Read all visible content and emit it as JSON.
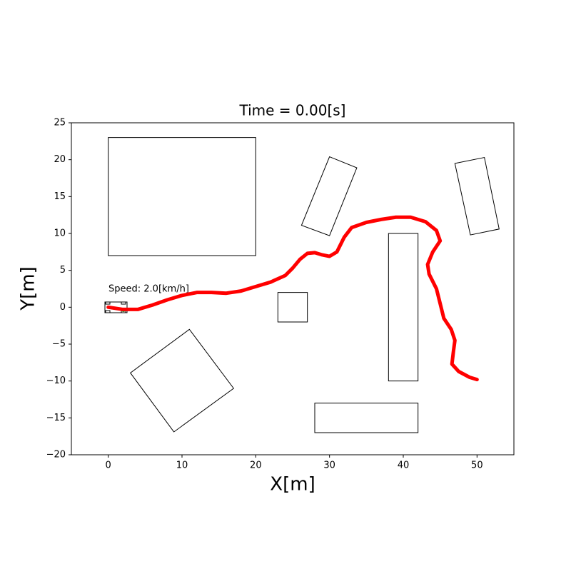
{
  "chart_data": {
    "type": "line",
    "title": "Time = 0.00[s]",
    "xlabel": "X[m]",
    "ylabel": "Y[m]",
    "annotation": "Speed: 2.0[km/h]",
    "xlim": [
      -5,
      55
    ],
    "ylim": [
      -20,
      25
    ],
    "xticks": [
      0,
      10,
      20,
      30,
      40,
      50
    ],
    "yticks": [
      {
        "value": -20,
        "label": "−20"
      },
      {
        "value": -15,
        "label": "−15"
      },
      {
        "value": -10,
        "label": "−10"
      },
      {
        "value": -5,
        "label": "−5"
      },
      0,
      5,
      10,
      15,
      20,
      25
    ],
    "series": [
      {
        "color": "#ff0000",
        "x": [
          0,
          2,
          4,
          6,
          8,
          10,
          12,
          14,
          16,
          18,
          20,
          22,
          24,
          25,
          26,
          27,
          28,
          29,
          30,
          31,
          32,
          33,
          35,
          37,
          39,
          41,
          43,
          44.5,
          45,
          44,
          43.3,
          43.5,
          44.5,
          45,
          45.5,
          46.5,
          47,
          46.8,
          46.6,
          47.5,
          49,
          50
        ],
        "values": [
          0,
          -0.3,
          -0.3,
          0.3,
          1,
          1.6,
          2,
          2,
          1.9,
          2.2,
          2.8,
          3.4,
          4.3,
          5.3,
          6.5,
          7.3,
          7.4,
          7.1,
          6.9,
          7.5,
          9.5,
          10.8,
          11.5,
          11.9,
          12.2,
          12.2,
          11.6,
          10.4,
          9,
          7.5,
          5.8,
          4.5,
          2.5,
          0.5,
          -1.5,
          -3,
          -4.5,
          -6,
          -7.7,
          -8.7,
          -9.5,
          -9.8
        ]
      }
    ],
    "obstacles": [
      {
        "x": [
          0,
          20,
          20,
          0
        ],
        "y": [
          7,
          7,
          23,
          23
        ]
      },
      {
        "x": [
          30.0,
          33.7,
          30.0,
          26.2
        ],
        "y": [
          20.4,
          18.9,
          9.7,
          11.1
        ]
      },
      {
        "x": [
          47.0,
          51.0,
          53.0,
          49.1
        ],
        "y": [
          19.5,
          20.3,
          10.6,
          9.8
        ]
      },
      {
        "x": [
          23,
          27,
          27,
          23
        ],
        "y": [
          -2,
          -2,
          2,
          2
        ]
      },
      {
        "x": [
          38,
          42,
          42,
          38
        ],
        "y": [
          -10,
          -10,
          10,
          10
        ]
      },
      {
        "x": [
          28,
          42,
          42,
          28
        ],
        "y": [
          -17,
          -17,
          -13,
          -13
        ]
      },
      {
        "x": [
          11.0,
          17.0,
          8.9,
          3.0
        ],
        "y": [
          -3.0,
          -11.0,
          -16.9,
          -8.9
        ]
      }
    ]
  }
}
